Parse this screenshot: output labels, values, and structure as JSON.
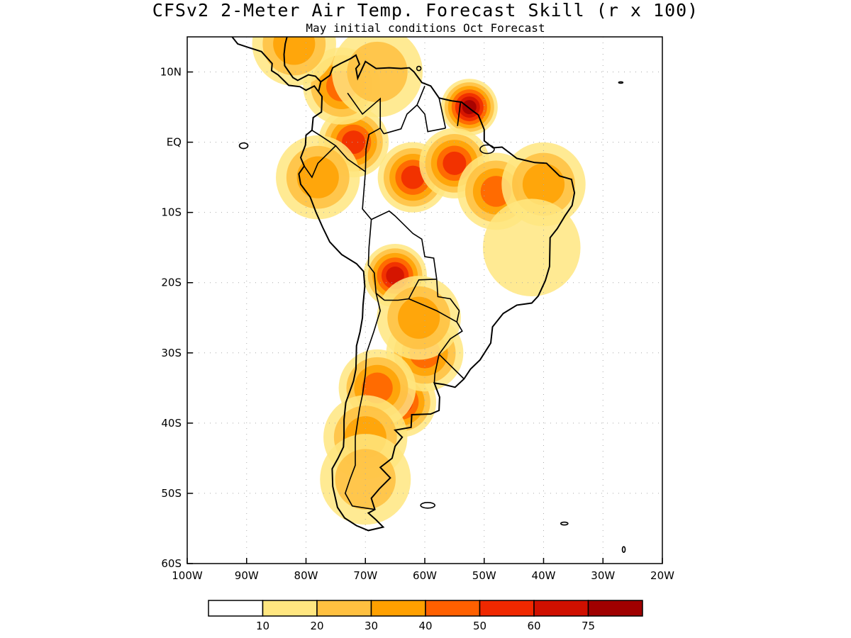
{
  "title": "CFSv2 2-Meter Air Temp. Forecast Skill (r x 100)",
  "subtitle": "May initial conditions  Oct Forecast",
  "chart_data": {
    "type": "heatmap",
    "region": "South America",
    "variable": "2-meter air temperature forecast skill (correlation x 100)",
    "x_axis": {
      "range": [
        -100,
        -20
      ],
      "ticks": [
        -100,
        -90,
        -80,
        -70,
        -60,
        -50,
        -40,
        -30,
        -20
      ],
      "tick_labels": [
        "100W",
        "90W",
        "80W",
        "70W",
        "60W",
        "50W",
        "40W",
        "30W",
        "20W"
      ]
    },
    "y_axis": {
      "range": [
        -60,
        15
      ],
      "ticks": [
        10,
        0,
        -10,
        -20,
        -30,
        -40,
        -50,
        -60
      ],
      "tick_labels": [
        "10N",
        "EQ",
        "10S",
        "20S",
        "30S",
        "40S",
        "50S",
        "60S"
      ]
    },
    "grid": true,
    "colorbar": {
      "colors": [
        "#ffffff",
        "#ffe680",
        "#ffc040",
        "#ffa000",
        "#ff6000",
        "#f02800",
        "#d01000",
        "#a00000"
      ],
      "labels": [
        "10",
        "20",
        "30",
        "40",
        "50",
        "60",
        "75"
      ]
    },
    "skill_regions": [
      {
        "lon": -52.5,
        "lat": 5,
        "level": 7
      },
      {
        "lon": -65,
        "lat": -19,
        "level": 6
      },
      {
        "lon": -72,
        "lat": 0,
        "level": 5
      },
      {
        "lon": -62,
        "lat": -5,
        "level": 5
      },
      {
        "lon": -55,
        "lat": -3,
        "level": 5
      },
      {
        "lon": -64,
        "lat": -37,
        "level": 5
      },
      {
        "lon": -60,
        "lat": -30,
        "level": 4
      },
      {
        "lon": -68,
        "lat": -35,
        "level": 4
      },
      {
        "lon": -48,
        "lat": -7,
        "level": 4
      },
      {
        "lon": -40,
        "lat": -6,
        "level": 3
      },
      {
        "lon": -74,
        "lat": 8,
        "level": 4
      },
      {
        "lon": -70,
        "lat": -42,
        "level": 3
      },
      {
        "lon": -61,
        "lat": -25,
        "level": 3
      },
      {
        "lon": -78,
        "lat": -5,
        "level": 3
      },
      {
        "lon": -42,
        "lat": -15,
        "level": 1
      },
      {
        "lon": -68,
        "lat": 10,
        "level": 2
      },
      {
        "lon": -70,
        "lat": -48,
        "level": 2
      },
      {
        "lon": -82,
        "lat": 14,
        "level": 3
      }
    ]
  }
}
